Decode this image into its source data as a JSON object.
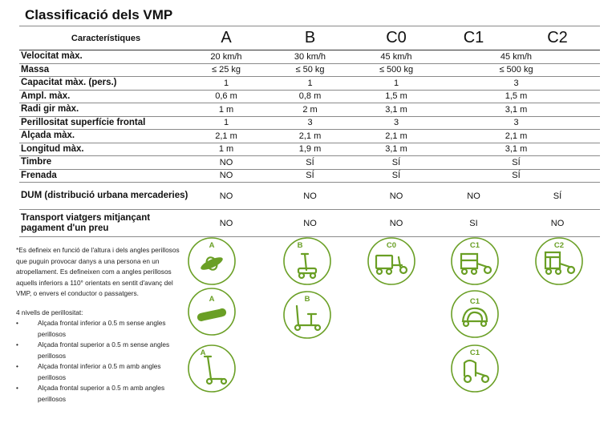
{
  "title": "Classificació dels VMP",
  "table": {
    "header": [
      "Característiques",
      "A",
      "B",
      "C0",
      "C1",
      "C2"
    ],
    "rows": [
      {
        "label": "Velocitat màx.",
        "a": "20 km/h",
        "b": "30 km/h",
        "c0": "45 km/h",
        "c12": "45 km/h"
      },
      {
        "label": "Massa",
        "a": "≤ 25 kg",
        "b": "≤ 50 kg",
        "c0": "≤ 500 kg",
        "c12": "≤ 500 kg"
      },
      {
        "label": "Capacitat màx. (pers.)",
        "a": "1",
        "b": "1",
        "c0": "1",
        "c12": "3"
      },
      {
        "label": "Ampl. màx.",
        "a": "0,6 m",
        "b": "0,8 m",
        "c0": "1,5 m",
        "c12": "1,5 m"
      },
      {
        "label": "Radi gir màx.",
        "a": "1 m",
        "b": "2 m",
        "c0": "3,1 m",
        "c12": "3,1 m"
      },
      {
        "label": "Perillositat superfície frontal",
        "a": "1",
        "b": "3",
        "c0": "3",
        "c12": "3"
      },
      {
        "label": "Alçada màx.",
        "a": "2,1 m",
        "b": "2,1 m",
        "c0": "2,1 m",
        "c12": "2,1 m"
      },
      {
        "label": "Longitud màx.",
        "a": "1 m",
        "b": "1,9 m",
        "c0": "3,1 m",
        "c12": "3,1 m"
      },
      {
        "label": "Timbre",
        "a": "NO",
        "b": "SÍ",
        "c0": "SÍ",
        "c12": "SÍ"
      },
      {
        "label": "Frenada",
        "a": "NO",
        "b": "SÍ",
        "c0": "SÍ",
        "c12": "SÍ"
      }
    ],
    "dum": {
      "label": "DUM (distribució urbana mercaderies)",
      "a": "NO",
      "b": "NO",
      "c0": "NO",
      "c1": "NO",
      "c2": "SÍ"
    },
    "transport": {
      "label": "Transport viatgers mitjançant pagament d'un preu",
      "a": "NO",
      "b": "NO",
      "c0": "NO",
      "c1": "SI",
      "c2": "NO"
    }
  },
  "notes": {
    "footnote": "*Es defineix en funció de l'altura i dels angles perillosos que puguin provocar danys a una persona en un atropellament.  Es defineixen com a angles perillosos aquells inferiors a 110° orientats en sentit d'avanç del VMP, o envers el conductor o passatgers.",
    "levels_title": "4 nivells de perillositat:",
    "bullet": "•",
    "levels": [
      "Alçada frontal inferior a  0.5 m sense angles perillosos",
      "Alçada frontal superior a 0.5 m sense angles perillosos",
      "Alçada frontal inferior a 0.5 m amb angles perillosos",
      "Alçada frontal superior a 0.5 m amb angles perillosos"
    ]
  },
  "icons": {
    "accent_color": "#6a9f25",
    "items": [
      {
        "label": "A",
        "icon": "monowheel-icon"
      },
      {
        "label": "A",
        "icon": "hoverboard-icon"
      },
      {
        "label": "A",
        "icon": "kick-scooter-icon"
      },
      {
        "label": "B",
        "icon": "segway-icon"
      },
      {
        "label": "B",
        "icon": "seated-scooter-icon"
      },
      {
        "label": "C0",
        "icon": "cargo-trike-icon"
      },
      {
        "label": "C1",
        "icon": "passenger-trike-icon"
      },
      {
        "label": "C1",
        "icon": "enclosed-trike-icon"
      },
      {
        "label": "C1",
        "icon": "pedicab-icon"
      },
      {
        "label": "C2",
        "icon": "cargo-pedicab-icon"
      }
    ]
  }
}
